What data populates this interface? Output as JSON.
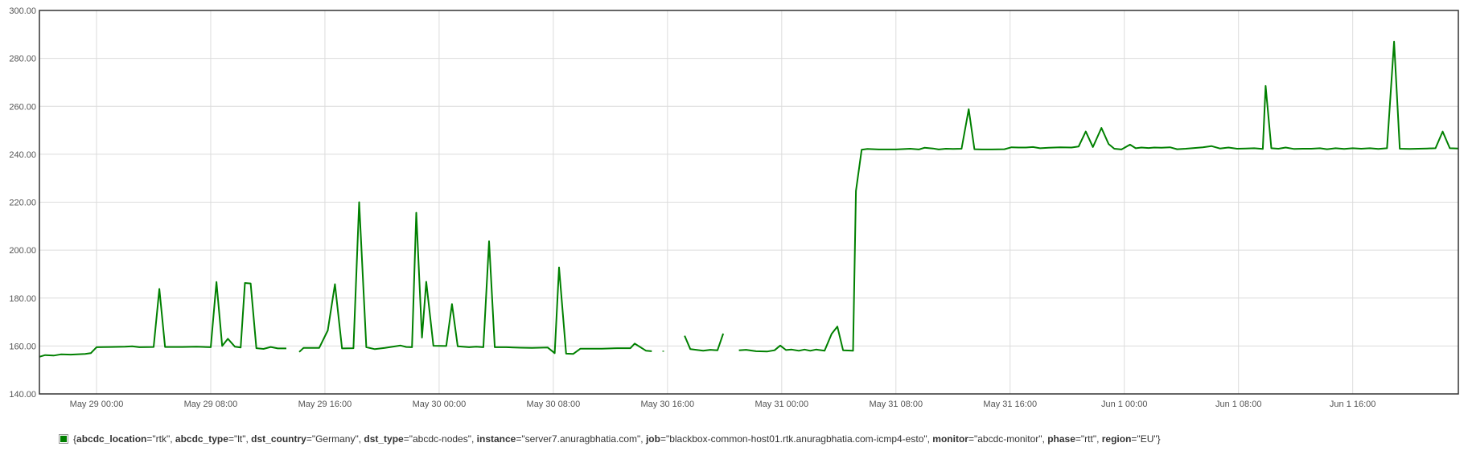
{
  "chart_data": {
    "type": "line",
    "ylim": [
      140,
      300
    ],
    "y_ticks": [
      "140.00",
      "160.00",
      "180.00",
      "200.00",
      "220.00",
      "240.00",
      "260.00",
      "280.00",
      "300.00"
    ],
    "x_ticks": [
      "May 29 00:00",
      "May 29 08:00",
      "May 29 16:00",
      "May 30 00:00",
      "May 30 08:00",
      "May 30 16:00",
      "May 31 00:00",
      "May 31 08:00",
      "May 31 16:00",
      "Jun 1 00:00",
      "Jun 1 08:00",
      "Jun 1 16:00"
    ],
    "x_unit": "hours since May 29 00:00",
    "xlim": [
      -4,
      95.4
    ],
    "grid": true,
    "legend_placement": "bottom-left",
    "series": [
      {
        "color": "#008000",
        "segments": [
          [
            [
              -4,
              155.5
            ],
            [
              -3.6,
              156.2
            ],
            [
              -3,
              156
            ],
            [
              -2.5,
              156.5
            ],
            [
              -1.8,
              156.4
            ],
            [
              -0.8,
              156.7
            ],
            [
              -0.4,
              157
            ],
            [
              0,
              159.5
            ],
            [
              1,
              159.6
            ],
            [
              2,
              159.7
            ],
            [
              2.5,
              159.9
            ],
            [
              3,
              159.5
            ],
            [
              4,
              159.6
            ],
            [
              4.4,
              183.8
            ],
            [
              4.8,
              159.6
            ],
            [
              6,
              159.6
            ],
            [
              7,
              159.7
            ],
            [
              8,
              159.5
            ],
            [
              8.4,
              186.7
            ],
            [
              8.8,
              160
            ],
            [
              9.2,
              163
            ],
            [
              9.7,
              159.7
            ],
            [
              10.1,
              159.4
            ],
            [
              10.4,
              186.3
            ],
            [
              10.8,
              186.1
            ],
            [
              11.2,
              159.1
            ],
            [
              11.7,
              158.8
            ],
            [
              12.2,
              159.6
            ],
            [
              12.7,
              159
            ],
            [
              13.3,
              159
            ]
          ],
          [
            [
              14.2,
              157.5
            ],
            [
              14.5,
              159.2
            ],
            [
              15.1,
              159.2
            ],
            [
              15.6,
              159.2
            ],
            [
              16.2,
              166.5
            ],
            [
              16.7,
              185.8
            ],
            [
              17.2,
              159
            ],
            [
              18,
              159.1
            ],
            [
              18.4,
              220
            ],
            [
              18.9,
              159.5
            ],
            [
              19.5,
              158.7
            ],
            [
              20.2,
              159.2
            ],
            [
              21.3,
              160.2
            ],
            [
              21.7,
              159.6
            ],
            [
              22.1,
              159.5
            ],
            [
              22.4,
              215.6
            ],
            [
              22.8,
              163.5
            ],
            [
              23.1,
              186.8
            ],
            [
              23.6,
              160.1
            ],
            [
              24.5,
              160
            ],
            [
              24.9,
              177.5
            ],
            [
              25.3,
              159.9
            ],
            [
              26.1,
              159.5
            ],
            [
              26.6,
              159.7
            ],
            [
              27.1,
              159.5
            ],
            [
              27.5,
              203.7
            ],
            [
              27.9,
              159.5
            ],
            [
              28.7,
              159.5
            ],
            [
              29.7,
              159.3
            ],
            [
              30.5,
              159.2
            ],
            [
              31.6,
              159.4
            ],
            [
              32.1,
              157
            ],
            [
              32.4,
              192.8
            ],
            [
              32.9,
              156.8
            ],
            [
              33.4,
              156.7
            ],
            [
              33.9,
              158.9
            ],
            [
              34.8,
              158.9
            ],
            [
              35.4,
              158.9
            ],
            [
              36.5,
              159.1
            ],
            [
              37.4,
              159.1
            ],
            [
              37.7,
              161
            ],
            [
              38.5,
              158
            ],
            [
              38.9,
              157.8
            ]
          ],
          [
            [
              39.7,
              157.6
            ],
            [
              39.7,
              158
            ]
          ],
          [
            [
              41.2,
              164.3
            ],
            [
              41.6,
              158.7
            ],
            [
              42.5,
              158
            ],
            [
              43,
              158.4
            ],
            [
              43.5,
              158.2
            ],
            [
              43.9,
              165.2
            ]
          ],
          [
            [
              45,
              158.2
            ],
            [
              45.5,
              158.4
            ],
            [
              46.2,
              157.8
            ],
            [
              47,
              157.7
            ],
            [
              47.5,
              158.2
            ],
            [
              47.9,
              160.2
            ],
            [
              48.3,
              158.3
            ],
            [
              48.7,
              158.5
            ],
            [
              49.2,
              158
            ],
            [
              49.6,
              158.5
            ],
            [
              50,
              158
            ],
            [
              50.4,
              158.5
            ],
            [
              51,
              158
            ],
            [
              51.5,
              165.1
            ],
            [
              51.9,
              168.1
            ],
            [
              52.3,
              158.2
            ],
            [
              53,
              158
            ],
            [
              53.2,
              224.7
            ],
            [
              53.6,
              241.9
            ],
            [
              54,
              242.2
            ],
            [
              54.8,
              242
            ],
            [
              56,
              242
            ],
            [
              57,
              242.3
            ],
            [
              57.6,
              242
            ],
            [
              58,
              242.7
            ],
            [
              58.6,
              242.4
            ],
            [
              59,
              242
            ],
            [
              59.5,
              242.3
            ],
            [
              60,
              242.2
            ],
            [
              60.6,
              242.3
            ],
            [
              61.1,
              258.8
            ],
            [
              61.5,
              242.1
            ],
            [
              62,
              242
            ],
            [
              62.7,
              242
            ],
            [
              63.6,
              242.1
            ],
            [
              64.1,
              242.9
            ],
            [
              64.6,
              242.8
            ],
            [
              65.1,
              242.8
            ],
            [
              65.6,
              243
            ],
            [
              66.1,
              242.5
            ],
            [
              66.7,
              242.7
            ],
            [
              67.5,
              242.9
            ],
            [
              68.3,
              242.8
            ],
            [
              68.8,
              243.2
            ],
            [
              69.3,
              249.5
            ],
            [
              69.8,
              243
            ],
            [
              70.4,
              251
            ],
            [
              70.9,
              244.3
            ],
            [
              71.3,
              242.3
            ],
            [
              71.8,
              242
            ],
            [
              72.4,
              244
            ],
            [
              72.8,
              242.5
            ],
            [
              73.2,
              242.8
            ],
            [
              73.7,
              242.6
            ],
            [
              74.1,
              242.8
            ],
            [
              74.6,
              242.7
            ],
            [
              75.2,
              242.9
            ],
            [
              75.7,
              242.1
            ],
            [
              76.3,
              242.3
            ],
            [
              76.9,
              242.6
            ],
            [
              77.5,
              242.9
            ],
            [
              78.1,
              243.4
            ],
            [
              78.7,
              242.4
            ],
            [
              79.3,
              242.8
            ],
            [
              79.9,
              242.3
            ],
            [
              80.5,
              242.4
            ],
            [
              81.1,
              242.5
            ],
            [
              81.7,
              242.2
            ],
            [
              81.9,
              268.5
            ],
            [
              82.3,
              242.5
            ],
            [
              82.8,
              242.3
            ],
            [
              83.3,
              242.8
            ],
            [
              83.9,
              242.2
            ],
            [
              84.5,
              242.3
            ],
            [
              85.1,
              242.3
            ],
            [
              85.7,
              242.5
            ],
            [
              86.2,
              242.1
            ],
            [
              86.8,
              242.5
            ],
            [
              87.4,
              242.2
            ],
            [
              88,
              242.5
            ],
            [
              88.6,
              242.3
            ],
            [
              89.2,
              242.5
            ],
            [
              89.8,
              242.2
            ],
            [
              90.4,
              242.5
            ],
            [
              90.9,
              287
            ],
            [
              91.3,
              242.3
            ],
            [
              92,
              242.2
            ],
            [
              92.6,
              242.3
            ],
            [
              93.2,
              242.4
            ],
            [
              93.8,
              242.5
            ],
            [
              94.3,
              249.5
            ],
            [
              94.8,
              242.5
            ],
            [
              95.4,
              242.4
            ]
          ]
        ]
      }
    ]
  },
  "legend": {
    "pairs": [
      {
        "key": "abcdc_location",
        "val": "=\"rtk\", "
      },
      {
        "key": "abcdc_type",
        "val": "=\"lt\", "
      },
      {
        "key": "dst_country",
        "val": "=\"Germany\", "
      },
      {
        "key": "dst_type",
        "val": "=\"abcdc-nodes\", "
      },
      {
        "key": "instance",
        "val": "=\"server7.anuragbhatia.com\", "
      },
      {
        "key": "job",
        "val": "=\"blackbox-common-host01.rtk.anuragbhatia.com-icmp4-esto\", "
      },
      {
        "key": "monitor",
        "val": "=\"abcdc-monitor\", "
      },
      {
        "key": "phase",
        "val": "=\"rtt\", "
      },
      {
        "key": "region",
        "val": "=\"EU\""
      }
    ],
    "open": "{",
    "close": "}"
  }
}
